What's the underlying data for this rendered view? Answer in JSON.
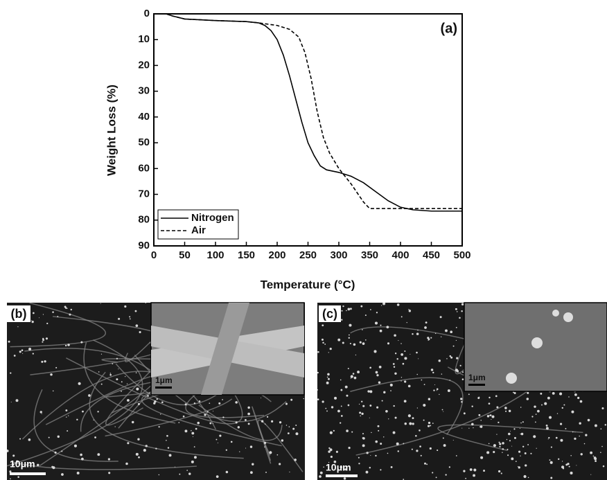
{
  "chart_data": {
    "type": "line",
    "annotation": "(a)",
    "x_label": "Temperature (°C)",
    "y_label": "Weight Loss (%)",
    "xlim": [
      0,
      500
    ],
    "xticks": [
      0,
      50,
      100,
      150,
      200,
      250,
      300,
      350,
      400,
      450,
      500
    ],
    "ylim": [
      90,
      0
    ],
    "yticks": [
      0,
      10,
      20,
      30,
      40,
      50,
      60,
      70,
      80,
      90
    ],
    "legend": "lower left",
    "series": [
      {
        "name": "Nitrogen",
        "color": "#000000",
        "linestyle": "solid",
        "x": [
          20,
          30,
          50,
          100,
          150,
          170,
          180,
          190,
          200,
          210,
          220,
          230,
          240,
          250,
          260,
          270,
          280,
          300,
          320,
          340,
          360,
          380,
          400,
          420,
          450,
          500
        ],
        "values": [
          0,
          0.8,
          2,
          2.6,
          3,
          3.5,
          4.5,
          6.5,
          10,
          16,
          24,
          33,
          42,
          50,
          55,
          59,
          60.5,
          61.5,
          63,
          65.5,
          69,
          72.5,
          75,
          76,
          76.5,
          76.5
        ]
      },
      {
        "name": "Air",
        "color": "#000000",
        "linestyle": "dashed",
        "x": [
          20,
          30,
          50,
          100,
          150,
          170,
          200,
          220,
          235,
          245,
          255,
          265,
          275,
          285,
          300,
          320,
          340,
          350,
          400,
          500
        ],
        "values": [
          0,
          0.8,
          2,
          2.6,
          3,
          3.5,
          4.5,
          6,
          9,
          15,
          25,
          38,
          48,
          54,
          60,
          66,
          73,
          75.5,
          75.5,
          75.5
        ]
      }
    ]
  },
  "images": [
    {
      "label": "(b)",
      "scale_bar": "10μm",
      "inset_scale_bar": "1μm"
    },
    {
      "label": "(c)",
      "scale_bar": "10μm",
      "inset_scale_bar": "1μm"
    }
  ]
}
